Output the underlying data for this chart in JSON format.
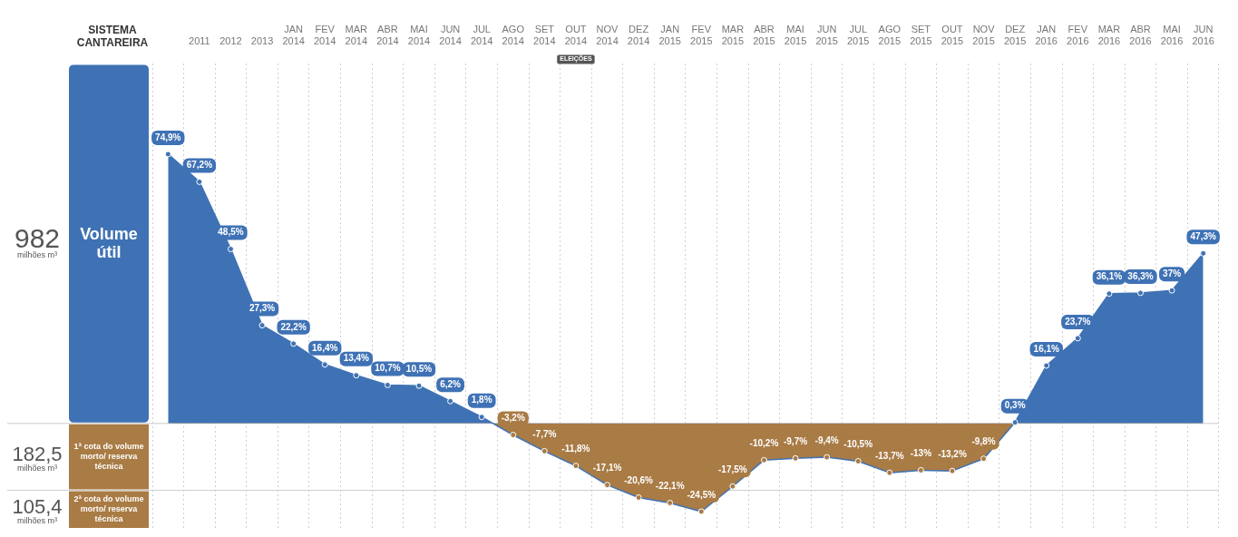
{
  "chart_data": {
    "type": "area",
    "title": "SISTEMA CANTAREIRA",
    "categories": [
      null,
      "2011",
      "2012",
      "2013",
      "JAN 2014",
      "FEV 2014",
      "MAR 2014",
      "ABR 2014",
      "MAI 2014",
      "JUN 2014",
      "JUL 2014",
      "AGO 2014",
      "SET 2014",
      "OUT 2014",
      "NOV 2014",
      "DEZ 2014",
      "JAN 2015",
      "FEV 2015",
      "MAR 2015",
      "ABR 2015",
      "MAI 2015",
      "JUN 2015",
      "JUL 2015",
      "AGO 2015",
      "SET 2015",
      "OUT 2015",
      "NOV 2015",
      "DEZ 2015",
      "JAN 2016",
      "FEV 2016",
      "MAR 2016",
      "ABR 2016",
      "MAI 2016",
      "JUN 2016"
    ],
    "values": [
      74.9,
      67.2,
      48.5,
      27.3,
      22.2,
      16.4,
      13.4,
      10.7,
      10.5,
      6.2,
      1.8,
      -3.2,
      -7.7,
      -11.8,
      -17.1,
      -20.6,
      -22.1,
      -24.5,
      -17.5,
      -10.2,
      -9.7,
      -9.4,
      -10.5,
      -13.7,
      -13,
      -13.2,
      -9.8,
      0.3,
      16.1,
      23.7,
      36.1,
      36.3,
      37,
      47.3
    ],
    "value_labels": [
      "74,9%",
      "67,2%",
      "48,5%",
      "27,3%",
      "22,2%",
      "16,4%",
      "13,4%",
      "10,7%",
      "10,5%",
      "6,2%",
      "1,8%",
      "-3,2%",
      "-7,7%",
      "-11,8%",
      "-17,1%",
      "-20,6%",
      "-22,1%",
      "-24,5%",
      "-17,5%",
      "-10,2%",
      "-9,7%",
      "-9,4%",
      "-10,5%",
      "-13,7%",
      "-13%",
      "-13,2%",
      "-9,8%",
      "0,3%",
      "16,1%",
      "23,7%",
      "36,1%",
      "36,3%",
      "37%",
      "47,3%"
    ],
    "colors": [
      "#3f72b5",
      "#3f72b5",
      "#3f72b5",
      "#3f72b5",
      "#3f72b5",
      "#3f72b5",
      "#3f72b5",
      "#3f72b5",
      "#3f72b5",
      "#3f72b5",
      "#3f72b5",
      "#a97b45",
      "#a97b45",
      "#a97b45",
      "#a97b45",
      "#a97b45",
      "#a97b45",
      "#a97b45",
      "#a97b45",
      "#a97b45",
      "#a97b45",
      "#a97b45",
      "#a97b45",
      "#a97b45",
      "#a97b45",
      "#a97b45",
      "#a97b45",
      "#3f72b5",
      "#3f72b5",
      "#3f72b5",
      "#3f72b5",
      "#3f72b5",
      "#3f72b5",
      "#3f72b5"
    ],
    "ylim": [
      -29.3,
      100
    ],
    "ref_lines": [
      {
        "axis": "y",
        "value": 0,
        "color": "#cccccc"
      },
      {
        "axis": "y",
        "value": -18.6,
        "color": "#cccccc"
      }
    ],
    "annotations": [
      "982",
      "milhões m³",
      "Volume útil",
      "182,5",
      "milhões m³",
      "1ª cota do volume morto/ reserva técnica",
      "105,4",
      "milhões m³",
      "2ª cota do volume morto/ reserva técnica",
      "ELEIÇÕES"
    ],
    "grid": "x",
    "marker": "circle",
    "legend": false,
    "tick_labels": "x"
  }
}
